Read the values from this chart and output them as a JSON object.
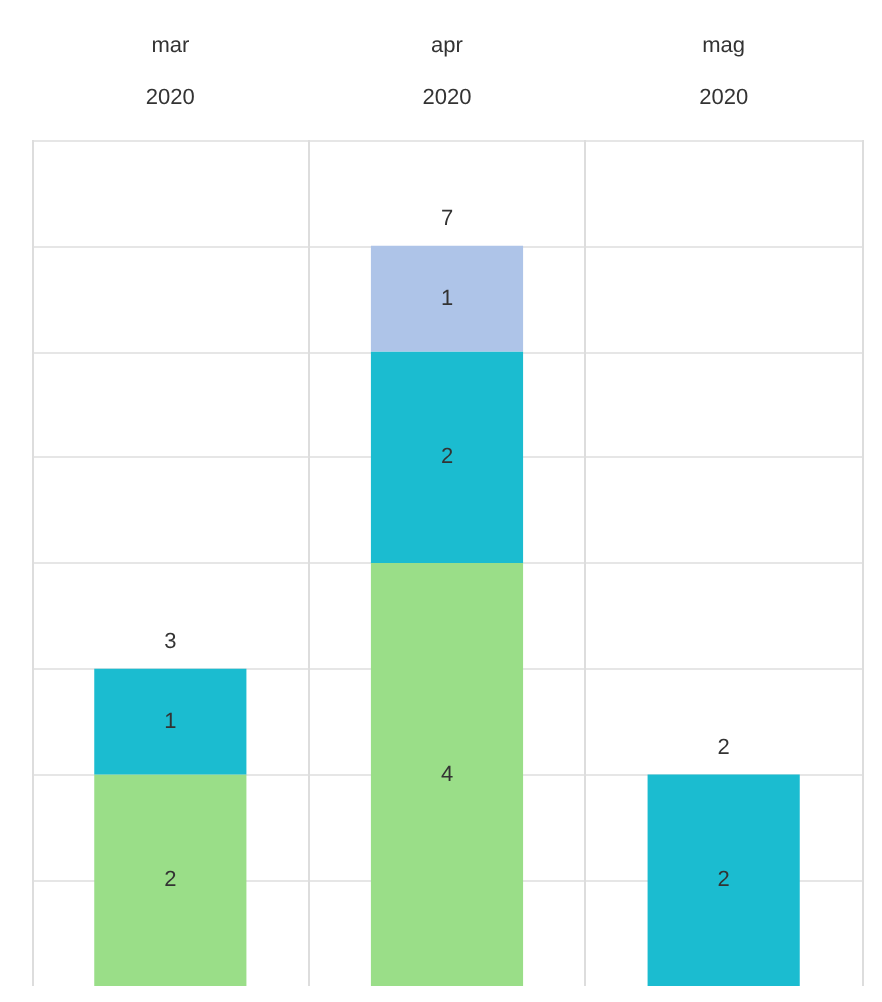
{
  "chart_data": {
    "type": "bar",
    "stacked": true,
    "categories": [
      "mar\n2020",
      "apr\n2020",
      "mag\n2020"
    ],
    "series": [
      {
        "color": "#9ade88",
        "values": [
          2,
          4,
          null
        ]
      },
      {
        "color": "#1bbcd0",
        "values": [
          1,
          2,
          2
        ]
      },
      {
        "color": "#aec4e8",
        "values": [
          null,
          1,
          null
        ]
      }
    ],
    "totals": [
      "3",
      "7",
      "2"
    ],
    "data_labels": true,
    "ylim": [
      0,
      8
    ],
    "grid": true
  }
}
